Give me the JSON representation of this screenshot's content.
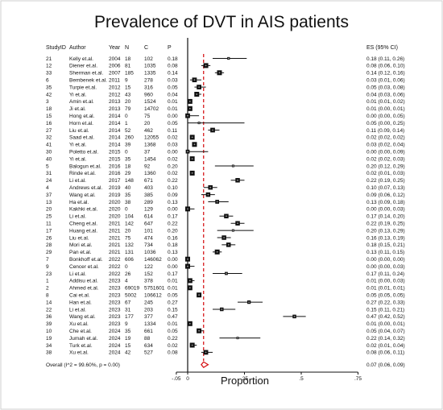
{
  "title": "Prevalence of DVT in AIS patients",
  "headers": {
    "studyid": "StudyID",
    "author": "Author",
    "year": "Year",
    "n": "N",
    "c": "C",
    "p": "P",
    "es": "ES (95% CI)"
  },
  "overall_label": "Overall  (I^2 = 99.60%, p = 0.00)",
  "overall_es": "0.07 (0.06, 0.09)",
  "colors": {
    "ref_line": "#d7191c",
    "diamond": "#d7191c",
    "marker": "#111111"
  },
  "chart_data": {
    "type": "forest",
    "xlabel": "Proportion",
    "x_ticks": [
      "-.05",
      "0",
      ".25",
      ".5",
      ".75"
    ],
    "x_tick_values": [
      -0.05,
      0,
      0.25,
      0.5,
      0.75
    ],
    "xlim": [
      -0.1,
      0.8
    ],
    "reference_line": 0.07,
    "rows": [
      {
        "id": "21",
        "author": "Kelly et.al.",
        "year": "2004",
        "n": "18",
        "c": "102",
        "p": "0.18",
        "es": 0.18,
        "lo": 0.11,
        "hi": 0.26,
        "es_text": "0.18 (0.11, 0.26)"
      },
      {
        "id": "12",
        "author": "Diener et.al.",
        "year": "2006",
        "n": "81",
        "c": "1035",
        "p": "0.08",
        "es": 0.08,
        "lo": 0.06,
        "hi": 0.1,
        "es_text": "0.08 (0.06, 0.10)"
      },
      {
        "id": "33",
        "author": "Sherman et.al.",
        "year": "2007",
        "n": "185",
        "c": "1335",
        "p": "0.14",
        "es": 0.14,
        "lo": 0.12,
        "hi": 0.16,
        "es_text": "0.14 (0.12, 0.16)"
      },
      {
        "id": "6",
        "author": "Bembenek et.al.",
        "year": "2011",
        "n": "9",
        "c": "278",
        "p": "0.03",
        "es": 0.03,
        "lo": 0.01,
        "hi": 0.06,
        "es_text": "0.03 (0.01, 0.06)"
      },
      {
        "id": "35",
        "author": "Turpie et.al.",
        "year": "2012",
        "n": "15",
        "c": "316",
        "p": "0.05",
        "es": 0.05,
        "lo": 0.03,
        "hi": 0.08,
        "es_text": "0.05 (0.03, 0.08)"
      },
      {
        "id": "42",
        "author": "Yi et.al.",
        "year": "2012",
        "n": "43",
        "c": "960",
        "p": "0.04",
        "es": 0.04,
        "lo": 0.03,
        "hi": 0.06,
        "es_text": "0.04 (0.03, 0.06)"
      },
      {
        "id": "3",
        "author": "Amin et.al.",
        "year": "2013",
        "n": "20",
        "c": "1524",
        "p": "0.01",
        "es": 0.01,
        "lo": 0.01,
        "hi": 0.02,
        "es_text": "0.01 (0.01, 0.02)"
      },
      {
        "id": "18",
        "author": "Ji et.al.",
        "year": "2013",
        "n": "79",
        "c": "14702",
        "p": "0.01",
        "es": 0.01,
        "lo": 0.0,
        "hi": 0.01,
        "es_text": "0.01 (0.00, 0.01)"
      },
      {
        "id": "15",
        "author": "Hong et.al.",
        "year": "2014",
        "n": "0",
        "c": "75",
        "p": "0.00",
        "es": 0.0,
        "lo": 0.0,
        "hi": 0.05,
        "es_text": "0.00 (0.00, 0.05)"
      },
      {
        "id": "16",
        "author": "Horn et.al.",
        "year": "2014",
        "n": "1",
        "c": "20",
        "p": "0.05",
        "es": 0.05,
        "lo": 0.0,
        "hi": 0.25,
        "es_text": "0.05 (0.00, 0.25)"
      },
      {
        "id": "27",
        "author": "Liu et.al.",
        "year": "2014",
        "n": "52",
        "c": "462",
        "p": "0.11",
        "es": 0.11,
        "lo": 0.09,
        "hi": 0.14,
        "es_text": "0.11 (0.09, 0.14)"
      },
      {
        "id": "32",
        "author": "Saad et.al.",
        "year": "2014",
        "n": "260",
        "c": "12055",
        "p": "0.02",
        "es": 0.02,
        "lo": 0.02,
        "hi": 0.02,
        "es_text": "0.02 (0.02, 0.02)"
      },
      {
        "id": "41",
        "author": "Yi et.al.",
        "year": "2014",
        "n": "39",
        "c": "1368",
        "p": "0.03",
        "es": 0.03,
        "lo": 0.02,
        "hi": 0.04,
        "es_text": "0.03 (0.02, 0.04)"
      },
      {
        "id": "30",
        "author": "Poletto et.al.",
        "year": "2015",
        "n": "0",
        "c": "37",
        "p": "0.00",
        "es": 0.0,
        "lo": 0.0,
        "hi": 0.09,
        "es_text": "0.00 (0.00, 0.09)"
      },
      {
        "id": "40",
        "author": "Yi et.al.",
        "year": "2015",
        "n": "35",
        "c": "1454",
        "p": "0.02",
        "es": 0.02,
        "lo": 0.02,
        "hi": 0.03,
        "es_text": "0.02 (0.02, 0.03)"
      },
      {
        "id": "5",
        "author": "Balogun et.al.",
        "year": "2016",
        "n": "18",
        "c": "92",
        "p": "0.20",
        "es": 0.2,
        "lo": 0.12,
        "hi": 0.29,
        "es_text": "0.20 (0.12, 0.29)"
      },
      {
        "id": "31",
        "author": "Rinde et.al.",
        "year": "2016",
        "n": "29",
        "c": "1360",
        "p": "0.02",
        "es": 0.02,
        "lo": 0.01,
        "hi": 0.03,
        "es_text": "0.02 (0.01, 0.03)"
      },
      {
        "id": "24",
        "author": "Li et.al.",
        "year": "2017",
        "n": "148",
        "c": "671",
        "p": "0.22",
        "es": 0.22,
        "lo": 0.19,
        "hi": 0.25,
        "es_text": "0.22 (0.19, 0.25)"
      },
      {
        "id": "4",
        "author": "Andrews et.al.",
        "year": "2019",
        "n": "40",
        "c": "403",
        "p": "0.10",
        "es": 0.1,
        "lo": 0.07,
        "hi": 0.13,
        "es_text": "0.10 (0.07, 0.13)"
      },
      {
        "id": "37",
        "author": "Wang et.al.",
        "year": "2019",
        "n": "35",
        "c": "385",
        "p": "0.09",
        "es": 0.09,
        "lo": 0.06,
        "hi": 0.12,
        "es_text": "0.09 (0.06, 0.12)"
      },
      {
        "id": "13",
        "author": "Ha et.al.",
        "year": "2020",
        "n": "38",
        "c": "289",
        "p": "0.13",
        "es": 0.13,
        "lo": 0.09,
        "hi": 0.18,
        "es_text": "0.13 (0.09, 0.18)"
      },
      {
        "id": "20",
        "author": "Kakhki et.al.",
        "year": "2020",
        "n": "0",
        "c": "129",
        "p": "0.00",
        "es": 0.0,
        "lo": 0.0,
        "hi": 0.03,
        "es_text": "0.00 (0.00, 0.03)"
      },
      {
        "id": "25",
        "author": "Li et.al.",
        "year": "2020",
        "n": "104",
        "c": "614",
        "p": "0.17",
        "es": 0.17,
        "lo": 0.14,
        "hi": 0.2,
        "es_text": "0.17 (0.14, 0.20)"
      },
      {
        "id": "11",
        "author": "Cheng et.al.",
        "year": "2021",
        "n": "142",
        "c": "647",
        "p": "0.22",
        "es": 0.22,
        "lo": 0.19,
        "hi": 0.25,
        "es_text": "0.22 (0.19, 0.25)"
      },
      {
        "id": "17",
        "author": "Huang et.al.",
        "year": "2021",
        "n": "20",
        "c": "101",
        "p": "0.20",
        "es": 0.2,
        "lo": 0.13,
        "hi": 0.29,
        "es_text": "0.20 (0.13, 0.29)"
      },
      {
        "id": "26",
        "author": "Liu et.al.",
        "year": "2021",
        "n": "75",
        "c": "474",
        "p": "0.16",
        "es": 0.16,
        "lo": 0.13,
        "hi": 0.19,
        "es_text": "0.16 (0.13, 0.19)"
      },
      {
        "id": "28",
        "author": "Mori et.al.",
        "year": "2021",
        "n": "132",
        "c": "734",
        "p": "0.18",
        "es": 0.18,
        "lo": 0.15,
        "hi": 0.21,
        "es_text": "0.18 (0.15, 0.21)"
      },
      {
        "id": "29",
        "author": "Pan et.al.",
        "year": "2021",
        "n": "131",
        "c": "1036",
        "p": "0.13",
        "es": 0.13,
        "lo": 0.11,
        "hi": 0.15,
        "es_text": "0.13 (0.11, 0.15)"
      },
      {
        "id": "7",
        "author": "Bonkhoff et.al.",
        "year": "2022",
        "n": "606",
        "c": "146062",
        "p": "0.00",
        "es": 0.0,
        "lo": 0.0,
        "hi": 0.0,
        "es_text": "0.00 (0.00, 0.00)"
      },
      {
        "id": "9",
        "author": "Cencer et.al.",
        "year": "2022",
        "n": "0",
        "c": "122",
        "p": "0.00",
        "es": 0.0,
        "lo": 0.0,
        "hi": 0.03,
        "es_text": "0.00 (0.00, 0.03)"
      },
      {
        "id": "23",
        "author": "Li et.al.",
        "year": "2022",
        "n": "26",
        "c": "152",
        "p": "0.17",
        "es": 0.17,
        "lo": 0.11,
        "hi": 0.24,
        "es_text": "0.17 (0.11, 0.24)"
      },
      {
        "id": "1",
        "author": "Addisu et.al.",
        "year": "2023",
        "n": "4",
        "c": "378",
        "p": "0.01",
        "es": 0.01,
        "lo": 0.0,
        "hi": 0.03,
        "es_text": "0.01 (0.00, 0.03)"
      },
      {
        "id": "2",
        "author": "Ahmed et.al.",
        "year": "2023",
        "n": "69019",
        "c": "5751601",
        "p": "0.01",
        "es": 0.01,
        "lo": 0.01,
        "hi": 0.01,
        "es_text": "0.01 (0.01, 0.01)"
      },
      {
        "id": "8",
        "author": "Cai et.al.",
        "year": "2023",
        "n": "5002",
        "c": "106612",
        "p": "0.05",
        "es": 0.05,
        "lo": 0.05,
        "hi": 0.05,
        "es_text": "0.05 (0.05, 0.05)"
      },
      {
        "id": "14",
        "author": "Han et.al.",
        "year": "2023",
        "n": "67",
        "c": "245",
        "p": "0.27",
        "es": 0.27,
        "lo": 0.22,
        "hi": 0.33,
        "es_text": "0.27 (0.22, 0.33)"
      },
      {
        "id": "22",
        "author": "Li et.al.",
        "year": "2023",
        "n": "31",
        "c": "203",
        "p": "0.15",
        "es": 0.15,
        "lo": 0.11,
        "hi": 0.21,
        "es_text": "0.15 (0.11, 0.21)"
      },
      {
        "id": "36",
        "author": "Wang et.al.",
        "year": "2023",
        "n": "177",
        "c": "377",
        "p": "0.47",
        "es": 0.47,
        "lo": 0.42,
        "hi": 0.52,
        "es_text": "0.47 (0.42, 0.52)"
      },
      {
        "id": "39",
        "author": "Xu et.al.",
        "year": "2023",
        "n": "9",
        "c": "1334",
        "p": "0.01",
        "es": 0.01,
        "lo": 0.0,
        "hi": 0.01,
        "es_text": "0.01 (0.00, 0.01)"
      },
      {
        "id": "10",
        "author": "Che et.al.",
        "year": "2024",
        "n": "35",
        "c": "661",
        "p": "0.05",
        "es": 0.05,
        "lo": 0.04,
        "hi": 0.07,
        "es_text": "0.05 (0.04, 0.07)"
      },
      {
        "id": "19",
        "author": "Jumah et.al.",
        "year": "2024",
        "n": "19",
        "c": "88",
        "p": "0.22",
        "es": 0.22,
        "lo": 0.14,
        "hi": 0.32,
        "es_text": "0.22 (0.14, 0.32)"
      },
      {
        "id": "34",
        "author": "Turk et.al.",
        "year": "2024",
        "n": "15",
        "c": "634",
        "p": "0.02",
        "es": 0.02,
        "lo": 0.01,
        "hi": 0.04,
        "es_text": "0.02 (0.01, 0.04)"
      },
      {
        "id": "38",
        "author": "Xu et.al.",
        "year": "2024",
        "n": "42",
        "c": "527",
        "p": "0.08",
        "es": 0.08,
        "lo": 0.06,
        "hi": 0.11,
        "es_text": "0.08 (0.06, 0.11)"
      }
    ],
    "overall": {
      "es": 0.07,
      "lo": 0.06,
      "hi": 0.09
    }
  }
}
